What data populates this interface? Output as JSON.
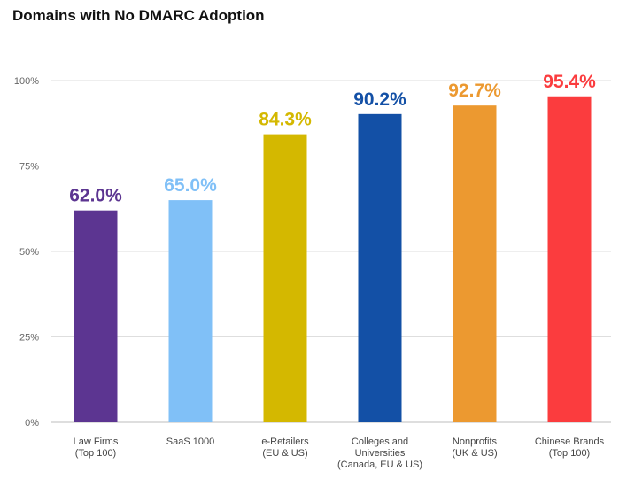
{
  "chart_data": {
    "type": "bar",
    "title": "Domains with No DMARC Adoption",
    "xlabel": "",
    "ylabel": "",
    "ylim": [
      0,
      100
    ],
    "yticks": [
      "0%",
      "25%",
      "50%",
      "75%",
      "100%"
    ],
    "ytick_values": [
      0,
      25,
      50,
      75,
      100
    ],
    "grid": true,
    "categories": [
      [
        "Law Firms",
        "(Top 100)"
      ],
      [
        "SaaS 1000"
      ],
      [
        "e-Retailers",
        "(EU & US)"
      ],
      [
        "Colleges and",
        "Universities",
        "(Canada, EU & US)"
      ],
      [
        "Nonprofits",
        "(UK & US)"
      ],
      [
        "Chinese Brands",
        "(Top 100)"
      ]
    ],
    "values": [
      62.0,
      65.0,
      84.3,
      90.2,
      92.7,
      95.4
    ],
    "value_labels": [
      "62.0%",
      "65.0%",
      "84.3%",
      "90.2%",
      "92.7%",
      "95.4%"
    ],
    "colors": [
      "#5c3591",
      "#80c0f7",
      "#d4b800",
      "#1350a6",
      "#ec9930",
      "#fb3c3e"
    ]
  }
}
